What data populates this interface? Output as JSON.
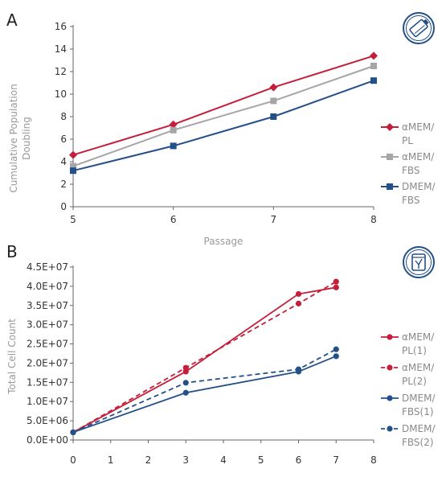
{
  "chart_data": [
    {
      "panel": "A",
      "type": "line",
      "xlabel": "Passage",
      "ylabel": "Cumulative Population Doubling",
      "x": [
        5,
        6,
        7,
        8
      ],
      "xlim": [
        5,
        8
      ],
      "ylim": [
        0,
        16
      ],
      "x_ticks": [
        "5",
        "6",
        "7",
        "8"
      ],
      "y_ticks": [
        "0",
        "2",
        "4",
        "6",
        "8",
        "10",
        "12",
        "14",
        "16"
      ],
      "grid": false,
      "legend_position": "right",
      "icon": "bioreactor-icon",
      "series": [
        {
          "name": "αMEM/PL",
          "legend_lines": [
            "αMEM/",
            "PL"
          ],
          "color": "#c41e3a",
          "marker": "diamond",
          "values": [
            4.6,
            7.3,
            10.6,
            13.4
          ]
        },
        {
          "name": "αMEM/FBS",
          "legend_lines": [
            "αMEM/",
            "FBS"
          ],
          "color": "#a6a6a6",
          "marker": "square",
          "values": [
            3.6,
            6.8,
            9.4,
            12.5
          ]
        },
        {
          "name": "DMEM/FBS",
          "legend_lines": [
            "DMEM/",
            "FBS"
          ],
          "color": "#24508a",
          "marker": "square",
          "values": [
            3.2,
            5.4,
            8.0,
            11.2
          ]
        }
      ]
    },
    {
      "panel": "B",
      "type": "line",
      "xlabel": "",
      "ylabel": "Total Cell Count",
      "x": [
        0,
        3,
        6,
        7
      ],
      "xlim": [
        0,
        8
      ],
      "ylim": [
        0,
        45000000
      ],
      "x_ticks": [
        "0",
        "1",
        "2",
        "3",
        "4",
        "5",
        "6",
        "7",
        "8"
      ],
      "y_ticks": [
        "0.0E+00",
        "5.0E+06",
        "1.0E+07",
        "1.5E+07",
        "2.0E+07",
        "2.5E+07",
        "3.0E+07",
        "3.5E+07",
        "4.0E+07",
        "4.5E+07"
      ],
      "grid": false,
      "legend_position": "right",
      "icon": "cell-culture-icon",
      "series": [
        {
          "name": "αMEM/PL(1)",
          "legend_lines": [
            "αMEM/",
            "PL(1)"
          ],
          "color": "#c41e3a",
          "dash": false,
          "x": [
            0,
            3,
            6,
            7
          ],
          "values": [
            2000000,
            17800000,
            38000000,
            39700000
          ]
        },
        {
          "name": "αMEM/PL(2)",
          "legend_lines": [
            "αMEM/",
            "PL(2)"
          ],
          "color": "#c41e3a",
          "dash": true,
          "x": [
            0,
            3,
            6,
            7
          ],
          "values": [
            2000000,
            18800000,
            35500000,
            41200000
          ]
        },
        {
          "name": "DMEM/FBS(1)",
          "legend_lines": [
            "DMEM/",
            "FBS(1)"
          ],
          "color": "#24508a",
          "dash": false,
          "x": [
            0,
            3,
            6,
            7
          ],
          "values": [
            2000000,
            12300000,
            17800000,
            21800000
          ]
        },
        {
          "name": "DMEM/FBS(2)",
          "legend_lines": [
            "DMEM/",
            "FBS(2)"
          ],
          "color": "#24508a",
          "dash": true,
          "x": [
            0,
            3,
            6,
            7
          ],
          "values": [
            2000000,
            14900000,
            18400000,
            23600000
          ]
        }
      ]
    }
  ]
}
